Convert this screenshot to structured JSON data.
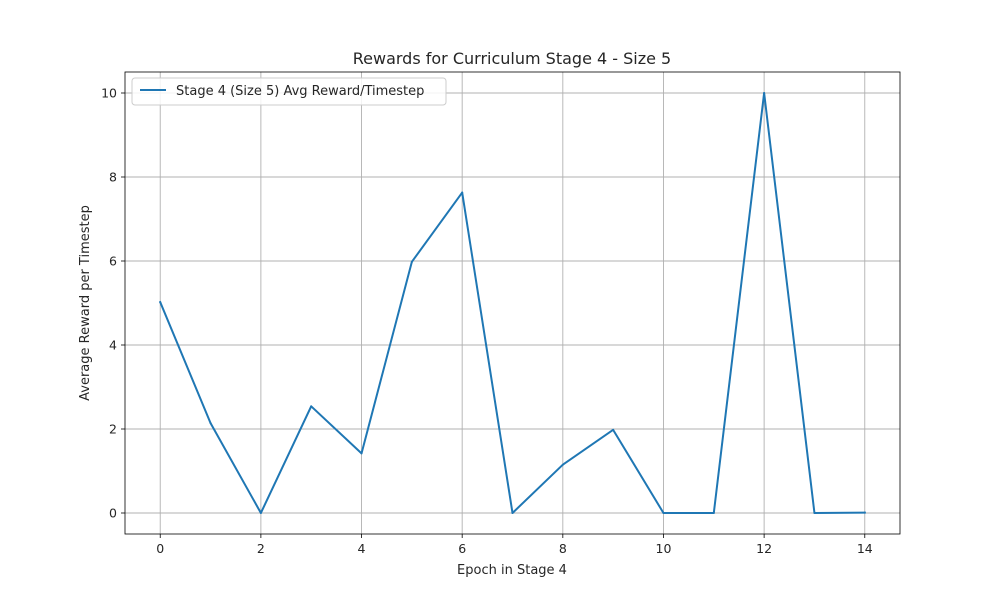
{
  "chart_data": {
    "type": "line",
    "title": "Rewards for Curriculum Stage 4 - Size 5",
    "xlabel": "Epoch in Stage 4",
    "ylabel": "Average Reward per Timestep",
    "xlim": [
      -0.7,
      14.7
    ],
    "ylim": [
      -0.5,
      10.5
    ],
    "xticks": [
      0,
      2,
      4,
      6,
      8,
      10,
      12,
      14
    ],
    "yticks": [
      0,
      2,
      4,
      6,
      8,
      10
    ],
    "grid": true,
    "legend_position": "top-left",
    "colors": {
      "line": "#1f77b4",
      "grid": "#b0b0b0",
      "axes": "#000000"
    },
    "series": [
      {
        "name": "Stage 4 (Size 5) Avg Reward/Timestep",
        "x": [
          0,
          1,
          2,
          3,
          4,
          5,
          6,
          7,
          8,
          9,
          10,
          11,
          12,
          13,
          14
        ],
        "y": [
          5.02,
          2.14,
          0.0,
          2.54,
          1.42,
          5.98,
          7.63,
          0.0,
          1.15,
          1.98,
          0.0,
          0.0,
          10.0,
          0.0,
          0.01
        ]
      }
    ]
  }
}
